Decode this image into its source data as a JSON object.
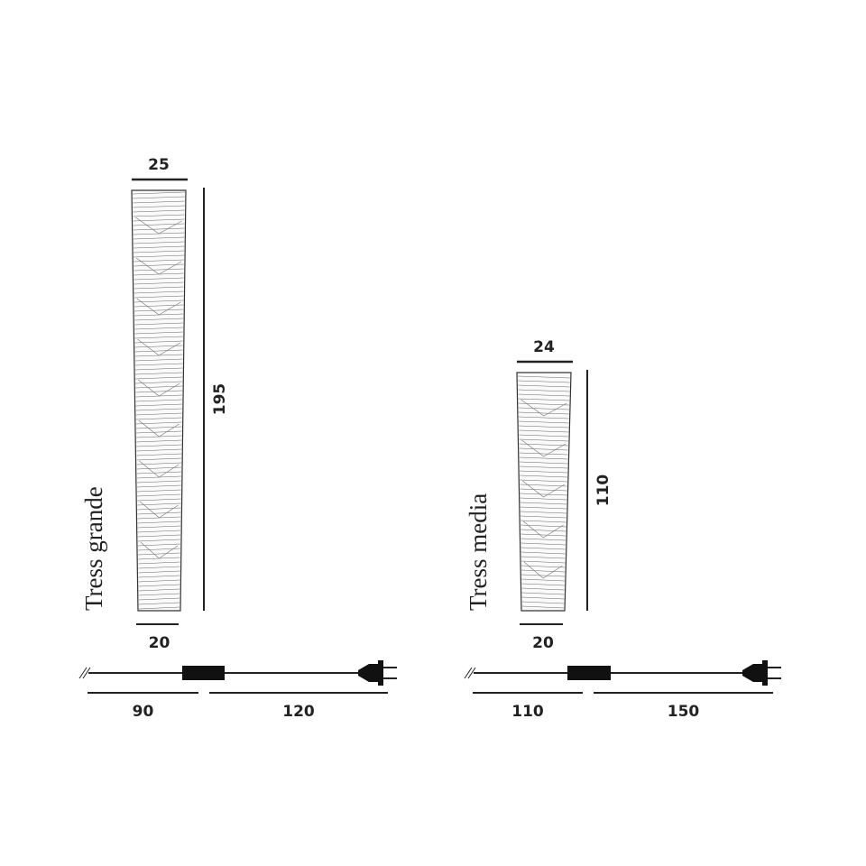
{
  "products": [
    {
      "name": "Tress grande",
      "top_width": 25,
      "bottom_width": 20,
      "height": 195,
      "cable": [
        90,
        120
      ]
    },
    {
      "name": "Tress media",
      "top_width": 24,
      "bottom_width": 20,
      "height": 110,
      "cable": [
        110,
        150
      ]
    }
  ]
}
